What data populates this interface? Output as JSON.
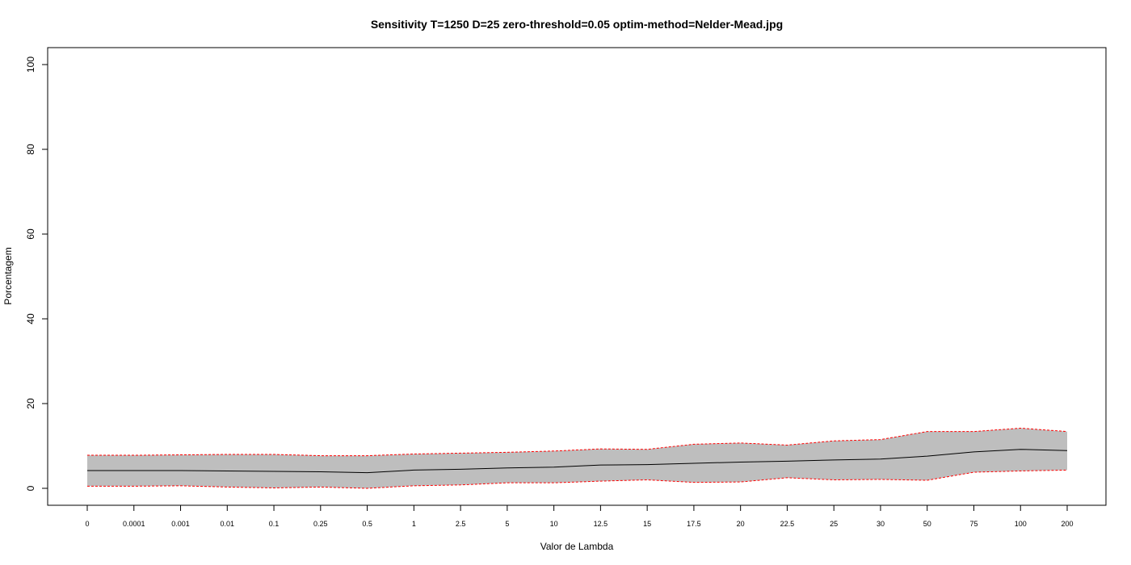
{
  "chart_data": {
    "type": "line",
    "title": "Sensitivity T=1250 D=25 zero-threshold=0.05 optim-method=Nelder-Mead.jpg",
    "xlabel": "Valor de Lambda",
    "ylabel": "Porcentagem",
    "categories": [
      "0",
      "0.0001",
      "0.001",
      "0.01",
      "0.1",
      "0.25",
      "0.5",
      "1",
      "2.5",
      "5",
      "10",
      "12.5",
      "15",
      "17.5",
      "20",
      "22.5",
      "25",
      "30",
      "50",
      "75",
      "100",
      "200"
    ],
    "yticks": [
      0,
      20,
      40,
      60,
      80,
      100
    ],
    "ylim": [
      0,
      100
    ],
    "grid": false,
    "series": [
      {
        "role": "mean",
        "color": "#000000",
        "values": [
          4.2,
          4.2,
          4.2,
          4.1,
          4.0,
          3.9,
          3.7,
          4.3,
          4.5,
          4.8,
          5.0,
          5.5,
          5.6,
          5.9,
          6.2,
          6.4,
          6.7,
          6.9,
          7.6,
          8.6,
          9.2,
          8.9
        ]
      },
      {
        "role": "upper",
        "color": "#ff0000",
        "values": [
          7.8,
          7.8,
          7.9,
          8.0,
          8.0,
          7.7,
          7.7,
          8.1,
          8.3,
          8.5,
          8.8,
          9.3,
          9.2,
          10.4,
          10.7,
          10.2,
          11.2,
          11.5,
          13.4,
          13.4,
          14.2,
          13.4
        ]
      },
      {
        "role": "lower",
        "color": "#ff0000",
        "values": [
          0.5,
          0.5,
          0.6,
          0.3,
          0.1,
          0.3,
          0.0,
          0.6,
          0.8,
          1.3,
          1.3,
          1.7,
          2.0,
          1.4,
          1.5,
          2.5,
          2.0,
          2.1,
          1.9,
          3.8,
          4.1,
          4.3
        ]
      }
    ],
    "band_color": "#bebebe"
  }
}
